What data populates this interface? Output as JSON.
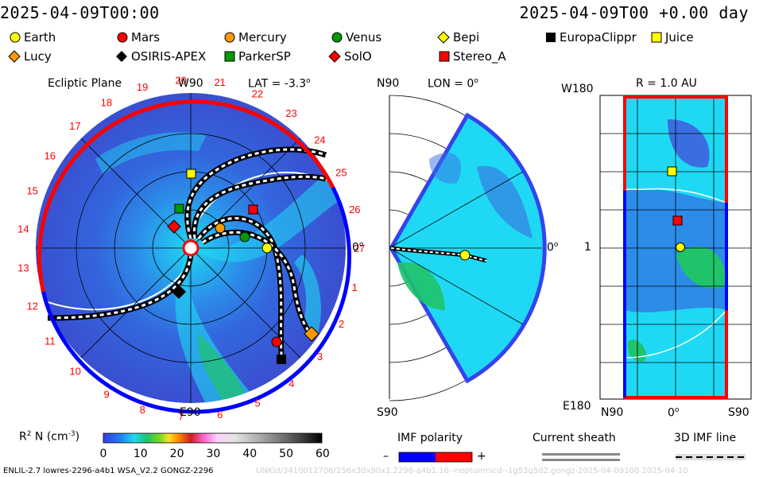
{
  "header": {
    "left_time": "2025-04-09T00:00",
    "right_time": "2025-04-09T00 +0.00 day"
  },
  "legend": [
    {
      "label": "Earth",
      "shape": "circle",
      "color": "#ffff00"
    },
    {
      "label": "Mars",
      "shape": "circle",
      "color": "#ff0000"
    },
    {
      "label": "Mercury",
      "shape": "circle",
      "color": "#ff9900"
    },
    {
      "label": "Venus",
      "shape": "circle",
      "color": "#009900"
    },
    {
      "label": "Bepi",
      "shape": "diamond",
      "color": "#ffff00"
    },
    {
      "label": "EuropaClippr",
      "shape": "square",
      "color": "#000000"
    },
    {
      "label": "Juice",
      "shape": "square",
      "color": "#ffff00"
    },
    {
      "label": "Lucy",
      "shape": "diamond",
      "color": "#ff9900"
    },
    {
      "label": "OSIRIS-APEX",
      "shape": "diamond",
      "color": "#000000"
    },
    {
      "label": "ParkerSP",
      "shape": "square",
      "color": "#009900"
    },
    {
      "label": "SolO",
      "shape": "diamond",
      "color": "#ff0000"
    },
    {
      "label": "Stereo_A",
      "shape": "square",
      "color": "#ff0000"
    }
  ],
  "ecliptic": {
    "title": "Ecliptic Plane",
    "top_label": "W90",
    "bottom_label": "E90",
    "right_label": "0",
    "lat_label": "LAT = -3.3",
    "degree_mark": "o",
    "carrington_numbers": [
      "1",
      "2",
      "3",
      "4",
      "5",
      "6",
      "7",
      "8",
      "9",
      "10",
      "11",
      "12",
      "13",
      "14",
      "15",
      "16",
      "17",
      "18",
      "19",
      "20",
      "21",
      "22",
      "23",
      "24",
      "25",
      "26",
      "27"
    ]
  },
  "meridional": {
    "top_label": "N90",
    "bottom_label": "S90",
    "lon_label": "LON = 0",
    "right_label": "0",
    "degree_mark": "o"
  },
  "radial": {
    "title": "R = 1.0 AU",
    "top_left": "W180",
    "bottom_left": "E180",
    "mid_left": "1",
    "x_left": "N90",
    "x_mid": "0",
    "x_right": "S90",
    "degree_mark": "o"
  },
  "colorbar": {
    "title": "R",
    "title_sup": "2",
    "title_rest": " N (cm",
    "title_sup2": "-3",
    "title_end": ")",
    "ticks": [
      "0",
      "10",
      "20",
      "30",
      "40",
      "50",
      "60"
    ]
  },
  "imf": {
    "title": "IMF polarity",
    "minus": "–",
    "plus": "+"
  },
  "sheath": {
    "title": "Current sheath"
  },
  "imfline": {
    "title": "3D IMF line"
  },
  "footer": {
    "left": "ENLIL-2.7 lowres-2296-a4b1 WSA_V2.2 GONGZ-2296",
    "right": "UNKid/3410012706/256x30x90x1.2296-a4b1.16--noptumnicd--1g53q5d2.gongz-2025-04-09100  2025-04-10"
  },
  "colors": {
    "ring_red": "#ff0000",
    "ring_blue": "#0000ff",
    "bg_blue": "#3a5ad6",
    "cyan": "#1fd9f4",
    "green": "#1fc36a"
  }
}
